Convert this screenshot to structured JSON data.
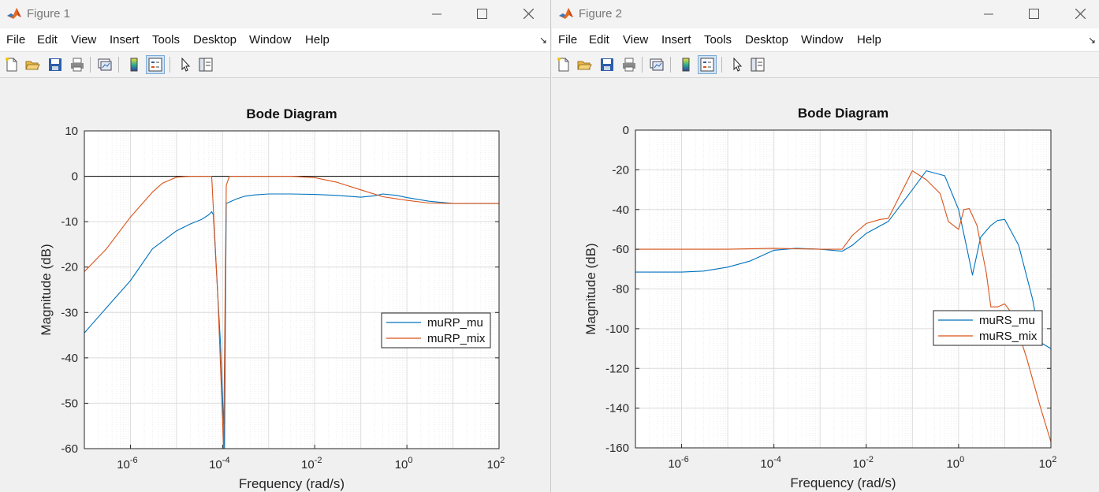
{
  "menu_labels": [
    "File",
    "Edit",
    "View",
    "Insert",
    "Tools",
    "Desktop",
    "Window",
    "Help"
  ],
  "windows": [
    {
      "title": "Figure 1",
      "chart_data": {
        "type": "line",
        "title": "Bode Diagram",
        "xlabel": "Frequency  (rad/s)",
        "ylabel": "Magnitude (dB)",
        "xscale": "log",
        "xlim": [
          1e-07,
          100
        ],
        "ylim": [
          -60,
          10
        ],
        "yticks": [
          10,
          0,
          -10,
          -20,
          -30,
          -40,
          -50,
          -60
        ],
        "xticks": [
          -6,
          -4,
          -2,
          0,
          2
        ],
        "grid": true,
        "legend_position": "right",
        "reference_line": 0,
        "series": [
          {
            "name": "muRP_mu",
            "color": "#0072bd",
            "x": [
              1e-07,
              3e-07,
              1e-06,
              3e-06,
              1e-05,
              2e-05,
              3.5e-05,
              5e-05,
              5.8e-05,
              6.3e-05,
              9e-05,
              0.00011,
              0.00012,
              0.0002,
              0.0003,
              0.0005,
              0.001,
              0.003,
              0.01,
              0.03,
              0.1,
              0.2,
              0.3,
              0.6,
              1,
              3,
              10,
              100
            ],
            "values": [
              -34.5,
              -29,
              -23,
              -16,
              -12,
              -10.5,
              -9.5,
              -8.5,
              -7.8,
              -8.5,
              -37,
              -60,
              -6,
              -5,
              -4.4,
              -4.1,
              -3.9,
              -3.9,
              -4,
              -4.2,
              -4.6,
              -4.3,
              -3.9,
              -4.2,
              -4.7,
              -5.5,
              -6,
              -6
            ]
          },
          {
            "name": "muRP_mix",
            "color": "#d95319",
            "x": [
              1e-07,
              3e-07,
              1e-06,
              3e-06,
              5e-06,
              1e-05,
              2e-05,
              3e-05,
              5e-05,
              5.8e-05,
              6e-05,
              8e-05,
              0.000105,
              0.00012,
              0.00014,
              0.001,
              0.003,
              0.01,
              0.03,
              0.1,
              0.3,
              1,
              3,
              10,
              100
            ],
            "values": [
              -21,
              -16,
              -9,
              -3.5,
              -1.5,
              -0.2,
              0,
              0,
              0,
              0,
              -3,
              -28,
              -60,
              -2,
              0,
              0,
              0,
              -0.3,
              -1.3,
              -3,
              -4.5,
              -5.3,
              -5.9,
              -6,
              -6
            ]
          }
        ]
      }
    },
    {
      "title": "Figure 2",
      "chart_data": {
        "type": "line",
        "title": "Bode Diagram",
        "xlabel": "Frequency  (rad/s)",
        "ylabel": "Magnitude (dB)",
        "xscale": "log",
        "xlim": [
          1e-07,
          100
        ],
        "ylim": [
          -160,
          0
        ],
        "yticks": [
          0,
          -20,
          -40,
          -60,
          -80,
          -100,
          -120,
          -140,
          -160
        ],
        "xticks": [
          -6,
          -4,
          -2,
          0,
          2
        ],
        "grid": true,
        "legend_position": "right",
        "series": [
          {
            "name": "muRS_mu",
            "color": "#0072bd",
            "x": [
              1e-07,
              1e-06,
              3e-06,
              1e-05,
              3e-05,
              0.0001,
              0.0003,
              0.001,
              0.003,
              0.005,
              0.01,
              0.03,
              0.1,
              0.2,
              0.5,
              1,
              1.5,
              2,
              3,
              5,
              7,
              10,
              20,
              40,
              60,
              100
            ],
            "values": [
              -71.5,
              -71.5,
              -71,
              -69,
              -66,
              -60.5,
              -59.5,
              -60,
              -61,
              -58,
              -52,
              -46,
              -30,
              -20.5,
              -23,
              -40,
              -59,
              -73,
              -54,
              -48,
              -45.5,
              -45,
              -58,
              -85,
              -107,
              -110
            ]
          },
          {
            "name": "muRS_mix",
            "color": "#d95319",
            "x": [
              1e-07,
              1e-06,
              1e-05,
              0.0001,
              0.001,
              0.003,
              0.005,
              0.01,
              0.02,
              0.03,
              0.1,
              0.2,
              0.4,
              0.6,
              1,
              1.3,
              1.7,
              2.5,
              4,
              5,
              7,
              10,
              15,
              30,
              60,
              100
            ],
            "values": [
              -60,
              -60,
              -60,
              -59.5,
              -60,
              -60,
              -53,
              -47,
              -45,
              -44.5,
              -20.5,
              -25,
              -32,
              -46,
              -50,
              -40,
              -39.5,
              -48,
              -72,
              -89,
              -89,
              -87.5,
              -93,
              -115,
              -140,
              -157
            ]
          }
        ]
      }
    }
  ]
}
